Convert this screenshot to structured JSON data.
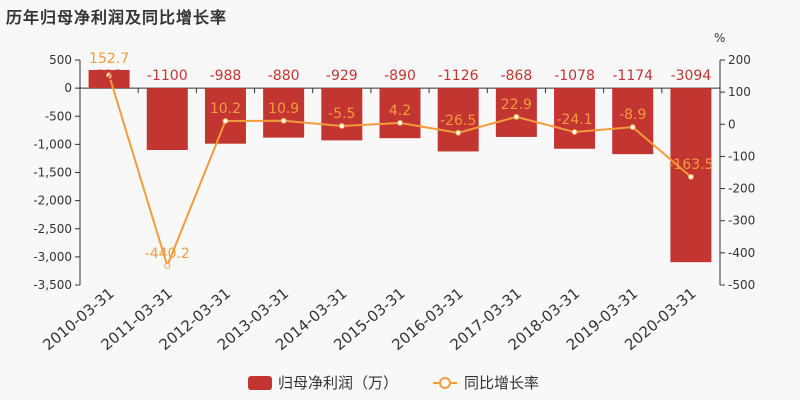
{
  "title": "历年归母净利润及同比增长率",
  "colors": {
    "bar": "#c23531",
    "line": "#f39c3e",
    "axis": "#333333",
    "grid": "#e6e6e6"
  },
  "chart_data": {
    "type": "bar",
    "categories": [
      "2010-03-31",
      "2011-03-31",
      "2012-03-31",
      "2013-03-31",
      "2014-03-31",
      "2015-03-31",
      "2016-03-31",
      "2017-03-31",
      "2018-03-31",
      "2019-03-31",
      "2020-03-31"
    ],
    "series": [
      {
        "name": "归母净利润（万）",
        "type": "bar",
        "axis": "left",
        "values": [
          323,
          -1100,
          -988,
          -880,
          -929,
          -890,
          -1126,
          -868,
          -1078,
          -1174,
          -3094
        ],
        "labels": [
          "323",
          "-1100",
          "-988",
          "-880",
          "-929",
          "-890",
          "-1126",
          "-868",
          "-1078",
          "-1174",
          "-3094"
        ]
      },
      {
        "name": "同比增长率",
        "type": "line",
        "axis": "right",
        "values": [
          152.7,
          -440.2,
          10.2,
          10.9,
          -5.5,
          4.2,
          -26.5,
          22.9,
          -24.1,
          -8.9,
          -163.5
        ],
        "labels": [
          "152.7",
          "-440.2",
          "10.2",
          "10.9",
          "-5.5",
          "4.2",
          "-26.5",
          "22.9",
          "-24.1",
          "-8.9",
          "-163.5"
        ]
      }
    ],
    "y_left": {
      "ylim": [
        -3500,
        500
      ],
      "ticks": [
        500,
        0,
        -500,
        -1000,
        -1500,
        -2000,
        -2500,
        -3000,
        -3500
      ],
      "tick_labels": [
        "500",
        "0",
        "-500",
        "-1,000",
        "-1,500",
        "-2,000",
        "-2,500",
        "-3,000",
        "-3,500"
      ]
    },
    "y_right": {
      "unit": "%",
      "ylim": [
        -500,
        200
      ],
      "ticks": [
        200,
        100,
        0,
        -100,
        -200,
        -300,
        -400,
        -500
      ],
      "tick_labels": [
        "200",
        "100",
        "0",
        "-100",
        "-200",
        "-300",
        "-400",
        "-500"
      ]
    },
    "legend": {
      "position": "bottom"
    },
    "grid": false
  }
}
